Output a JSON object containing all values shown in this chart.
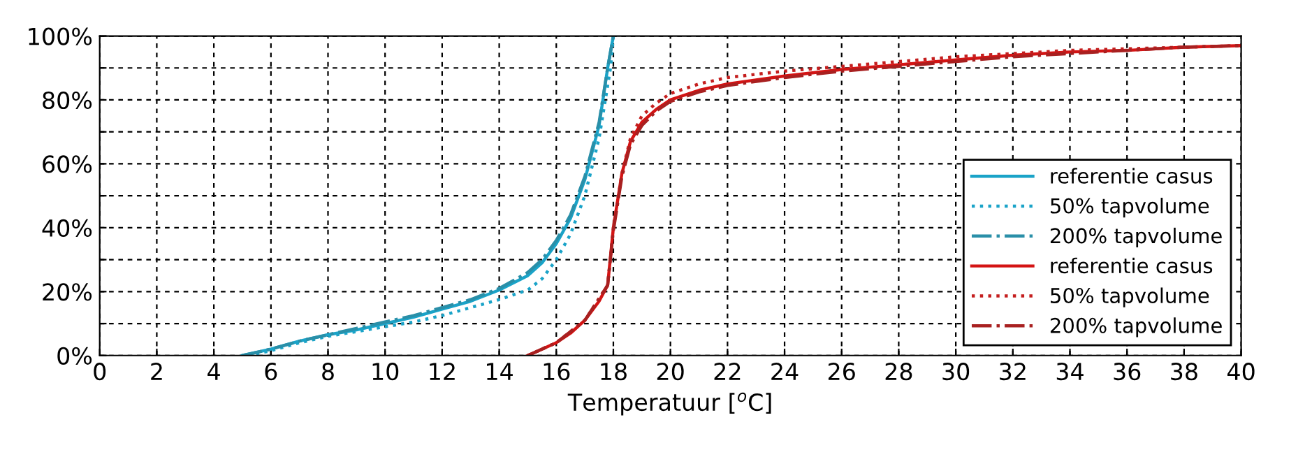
{
  "chart_data": {
    "type": "line",
    "xlabel": "Temperatuur [$^{o}$C]",
    "xlim": [
      0,
      40
    ],
    "xticks": [
      0,
      2,
      4,
      6,
      8,
      10,
      12,
      14,
      16,
      18,
      20,
      22,
      24,
      26,
      28,
      30,
      32,
      34,
      36,
      38,
      40
    ],
    "ylim": [
      0,
      100
    ],
    "yticks": [
      {
        "value": 0,
        "label": "0%"
      },
      {
        "value": 10,
        "label": null
      },
      {
        "value": 20,
        "label": "20%"
      },
      {
        "value": 30,
        "label": null
      },
      {
        "value": 40,
        "label": "40%"
      },
      {
        "value": 50,
        "label": null
      },
      {
        "value": 60,
        "label": "60%"
      },
      {
        "value": 70,
        "label": null
      },
      {
        "value": 80,
        "label": "80%"
      },
      {
        "value": 90,
        "label": null
      },
      {
        "value": 100,
        "label": "100%"
      }
    ],
    "grid": true,
    "legend": "bottom right",
    "marker": "none",
    "series": [
      {
        "name": "referentie casus",
        "color": "#1aa3c8",
        "line_style": "solid",
        "x": [
          5,
          6,
          7,
          8,
          9,
          10,
          11,
          12,
          13,
          14,
          15,
          15.5,
          16,
          16.5,
          17,
          17.5,
          17.8,
          18
        ],
        "values": [
          0,
          2,
          4.5,
          6.5,
          8,
          10,
          12,
          14.5,
          17,
          20.5,
          25,
          29,
          35,
          43,
          55,
          72,
          90,
          100
        ]
      },
      {
        "name": "50% tapvolume",
        "color": "#1aa3c8",
        "line_style": "dotted",
        "x": [
          5.2,
          6,
          7,
          8,
          9,
          10,
          11,
          12,
          13,
          14,
          15,
          15.5,
          16,
          16.5,
          17,
          17.5,
          17.9,
          18
        ],
        "values": [
          0,
          1.5,
          4,
          6,
          7.5,
          9,
          10.5,
          12.5,
          15,
          17.5,
          20.5,
          24,
          30,
          38,
          50,
          68,
          90,
          100
        ]
      },
      {
        "name": "200% tapvolume",
        "color": "#2a8fa8",
        "line_style": "dashdot",
        "x": [
          5,
          6,
          7,
          8,
          9,
          10,
          11,
          12,
          13,
          14,
          15,
          15.5,
          16,
          16.5,
          17,
          17.5,
          17.8,
          18
        ],
        "values": [
          0,
          2,
          4.5,
          6.5,
          8.5,
          10.5,
          12.5,
          15,
          17.5,
          21,
          26,
          30,
          36,
          44,
          56,
          73,
          90,
          100
        ]
      },
      {
        "name": "referentie casus",
        "color": "#d41414",
        "line_style": "solid",
        "x": [
          15,
          16,
          16.5,
          17,
          17.5,
          17.8,
          18,
          18.3,
          18.6,
          19,
          19.5,
          20,
          21,
          22,
          24,
          26,
          28,
          30,
          32,
          34,
          36,
          38,
          40
        ],
        "values": [
          0,
          4,
          7,
          11,
          17,
          22,
          40,
          57,
          67,
          73,
          77,
          80,
          83,
          85,
          87.5,
          89.5,
          91,
          92.5,
          94,
          95,
          95.5,
          96.5,
          97
        ]
      },
      {
        "name": "50% tapvolume",
        "color": "#c41e1e",
        "line_style": "dotted",
        "x": [
          15,
          16,
          17,
          17.8,
          18,
          18.3,
          18.6,
          19,
          19.5,
          20,
          21,
          22,
          24,
          26,
          28,
          30,
          32,
          34,
          36,
          38,
          40
        ],
        "values": [
          0,
          4,
          11,
          22,
          40,
          57,
          68,
          75,
          79,
          82,
          85,
          87,
          89,
          90.5,
          92,
          93.5,
          94.5,
          95.5,
          96,
          96.5,
          97
        ]
      },
      {
        "name": "200% tapvolume",
        "color": "#a82020",
        "line_style": "dashdot",
        "x": [
          15,
          16,
          17,
          17.8,
          18,
          18.3,
          18.6,
          19,
          19.5,
          20,
          21,
          22,
          24,
          26,
          28,
          30,
          32,
          34,
          36,
          38,
          40
        ],
        "values": [
          0,
          4,
          11,
          22,
          39,
          56,
          66,
          72,
          76.5,
          79.5,
          82.5,
          84.5,
          87,
          89,
          90.5,
          92,
          93.5,
          94.5,
          95.5,
          96.5,
          97
        ]
      }
    ]
  }
}
